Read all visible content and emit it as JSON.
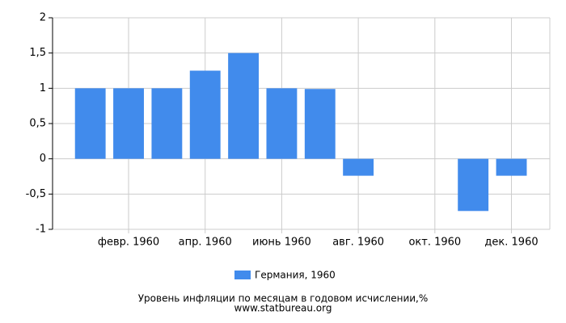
{
  "chart_data": {
    "type": "bar",
    "categories": [
      null,
      "февр. 1960",
      null,
      "апр. 1960",
      null,
      "июнь 1960",
      null,
      "авг. 1960",
      null,
      "окт. 1960",
      null,
      "дек. 1960"
    ],
    "series": [
      {
        "name": "Германия, 1960",
        "color": "#418bec",
        "values": [
          1,
          1,
          1,
          1.25,
          1.5,
          1,
          0.99,
          -0.24,
          0,
          0,
          -0.74,
          -0.24
        ]
      }
    ],
    "ylim": [
      -1,
      2
    ],
    "yticks": [
      -1,
      {
        "value": -0.5,
        "label": "-0,5"
      },
      0,
      {
        "value": 0.5,
        "label": "0,5"
      },
      1,
      {
        "value": 1.5,
        "label": "1,5"
      },
      2
    ],
    "grid": true,
    "footer": [
      "Уровень инфляции по месяцам в годовом исчислении,%",
      "www.statbureau.org"
    ]
  }
}
